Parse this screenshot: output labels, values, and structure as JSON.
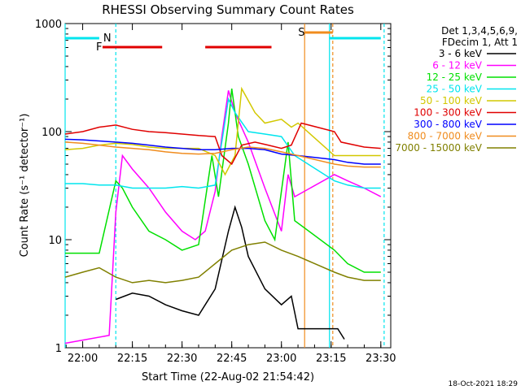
{
  "chart_data": {
    "type": "line",
    "title": "RHESSI Observing Summary Count Rates",
    "xlabel": "Start Time (22-Aug-02 21:54:42)",
    "ylabel": "Count Rate (s⁻¹ detector⁻¹)",
    "yscale": "log",
    "ylim": [
      1,
      1000
    ],
    "xlim": [
      "21:54:42",
      "23:33:00"
    ],
    "x_ticks": [
      "22:00",
      "22:15",
      "22:30",
      "22:45",
      "23:00",
      "23:15",
      "23:30"
    ],
    "y_ticks": [
      "1",
      "10",
      "100",
      "1000"
    ],
    "legend_header": [
      "Det 1,3,4,5,6,9,",
      "FDecim 1, Att 1"
    ],
    "legend_position": "right",
    "timestamp": "18-Oct-2021 18:29",
    "flags": {
      "N": [
        [
          "21:54:42",
          "22:05:00"
        ],
        [
          "23:14:30",
          "23:30:00"
        ]
      ],
      "F": [
        [
          "22:06:00",
          "22:24:00"
        ],
        [
          "22:37:00",
          "22:57:00"
        ]
      ],
      "S": [
        [
          "23:07:00",
          "23:15:30"
        ]
      ]
    },
    "flag_labels": {
      "N": "N",
      "F": "F",
      "S": "S"
    },
    "flag_colors": {
      "N": "#00e5ee",
      "F": "#e00000",
      "S": "#f08c1e"
    },
    "vertical_markers": [
      {
        "time": "21:54:42",
        "color": "#00e5ee",
        "style": "solid"
      },
      {
        "time": "22:10:00",
        "color": "#00e5ee",
        "style": "dashed"
      },
      {
        "time": "23:07:00",
        "color": "#f08c1e",
        "style": "solid"
      },
      {
        "time": "23:14:30",
        "color": "#00e5ee",
        "style": "solid"
      },
      {
        "time": "23:15:30",
        "color": "#f08c1e",
        "style": "dashed"
      },
      {
        "time": "23:31:00",
        "color": "#00e5ee",
        "style": "dashed"
      }
    ],
    "series": [
      {
        "name": "3 - 6 keV",
        "color": "#000000",
        "points": [
          [
            "22:10:00",
            2.8
          ],
          [
            "22:15:00",
            3.2
          ],
          [
            "22:20:00",
            3.0
          ],
          [
            "22:25:00",
            2.5
          ],
          [
            "22:30:00",
            2.2
          ],
          [
            "22:35:00",
            2.0
          ],
          [
            "22:40:00",
            3.5
          ],
          [
            "22:44:00",
            12
          ],
          [
            "22:46:00",
            20
          ],
          [
            "22:48:00",
            13
          ],
          [
            "22:50:00",
            7
          ],
          [
            "22:55:00",
            3.5
          ],
          [
            "23:00:00",
            2.5
          ],
          [
            "23:03:00",
            3
          ],
          [
            "23:05:00",
            1.5
          ],
          [
            "23:17:00",
            1.5
          ],
          [
            "23:19:00",
            1.2
          ]
        ]
      },
      {
        "name": "6 - 12 keV",
        "color": "#ff00ff",
        "points": [
          [
            "21:54:42",
            1.1
          ],
          [
            "22:08:00",
            1.3
          ],
          [
            "22:10:00",
            18
          ],
          [
            "22:12:00",
            60
          ],
          [
            "22:15:00",
            45
          ],
          [
            "22:20:00",
            30
          ],
          [
            "22:25:00",
            18
          ],
          [
            "22:30:00",
            12
          ],
          [
            "22:34:00",
            10
          ],
          [
            "22:37:00",
            12
          ],
          [
            "22:40:00",
            28
          ],
          [
            "22:42:00",
            90
          ],
          [
            "22:44:00",
            240
          ],
          [
            "22:46:00",
            150
          ],
          [
            "22:50:00",
            80
          ],
          [
            "22:55:00",
            30
          ],
          [
            "23:00:00",
            12
          ],
          [
            "23:02:00",
            40
          ],
          [
            "23:04:00",
            25
          ],
          [
            "23:16:00",
            40
          ],
          [
            "23:20:00",
            35
          ],
          [
            "23:25:00",
            30
          ],
          [
            "23:30:00",
            25
          ]
        ]
      },
      {
        "name": "12 - 25 keV",
        "color": "#00e000",
        "points": [
          [
            "21:54:42",
            7.5
          ],
          [
            "22:05:00",
            7.5
          ],
          [
            "22:10:00",
            35
          ],
          [
            "22:12:00",
            30
          ],
          [
            "22:15:00",
            20
          ],
          [
            "22:20:00",
            12
          ],
          [
            "22:25:00",
            10
          ],
          [
            "22:30:00",
            8
          ],
          [
            "22:35:00",
            9
          ],
          [
            "22:39:00",
            60
          ],
          [
            "22:41:00",
            25
          ],
          [
            "22:44:00",
            120
          ],
          [
            "22:45:00",
            250
          ],
          [
            "22:47:00",
            90
          ],
          [
            "22:50:00",
            50
          ],
          [
            "22:55:00",
            15
          ],
          [
            "22:58:00",
            10
          ],
          [
            "23:02:00",
            80
          ],
          [
            "23:04:00",
            15
          ],
          [
            "23:16:00",
            8
          ],
          [
            "23:20:00",
            6
          ],
          [
            "23:25:00",
            5
          ],
          [
            "23:30:00",
            5
          ]
        ]
      },
      {
        "name": "25 - 50 keV",
        "color": "#00e5ee",
        "points": [
          [
            "21:54:42",
            33
          ],
          [
            "22:00:00",
            33
          ],
          [
            "22:05:00",
            32
          ],
          [
            "22:10:00",
            32
          ],
          [
            "22:15:00",
            30
          ],
          [
            "22:20:00",
            30
          ],
          [
            "22:25:00",
            30
          ],
          [
            "22:30:00",
            31
          ],
          [
            "22:35:00",
            30
          ],
          [
            "22:40:00",
            32
          ],
          [
            "22:44:00",
            200
          ],
          [
            "22:46:00",
            150
          ],
          [
            "22:50:00",
            100
          ],
          [
            "22:55:00",
            95
          ],
          [
            "23:00:00",
            90
          ],
          [
            "23:04:00",
            60
          ],
          [
            "23:16:00",
            35
          ],
          [
            "23:20:00",
            32
          ],
          [
            "23:25:00",
            30
          ],
          [
            "23:30:00",
            30
          ]
        ]
      },
      {
        "name": "50 - 100 keV",
        "color": "#d2c800",
        "points": [
          [
            "21:54:42",
            68
          ],
          [
            "22:00:00",
            70
          ],
          [
            "22:05:00",
            75
          ],
          [
            "22:10:00",
            78
          ],
          [
            "22:15:00",
            76
          ],
          [
            "22:20:00",
            72
          ],
          [
            "22:25:00",
            70
          ],
          [
            "22:30:00",
            70
          ],
          [
            "22:35:00",
            70
          ],
          [
            "22:40:00",
            60
          ],
          [
            "22:43:00",
            40
          ],
          [
            "22:46:00",
            60
          ],
          [
            "22:48:00",
            250
          ],
          [
            "22:52:00",
            150
          ],
          [
            "22:55:00",
            120
          ],
          [
            "23:00:00",
            130
          ],
          [
            "23:03:00",
            110
          ],
          [
            "23:05:00",
            120
          ],
          [
            "23:16:00",
            60
          ],
          [
            "23:20:00",
            60
          ],
          [
            "23:25:00",
            60
          ],
          [
            "23:30:00",
            60
          ]
        ]
      },
      {
        "name": "100 - 300 keV",
        "color": "#e00000",
        "points": [
          [
            "21:54:42",
            95
          ],
          [
            "22:00:00",
            100
          ],
          [
            "22:05:00",
            110
          ],
          [
            "22:10:00",
            115
          ],
          [
            "22:15:00",
            105
          ],
          [
            "22:20:00",
            100
          ],
          [
            "22:25:00",
            98
          ],
          [
            "22:30:00",
            95
          ],
          [
            "22:35:00",
            92
          ],
          [
            "22:40:00",
            90
          ],
          [
            "22:42:00",
            60
          ],
          [
            "22:45:00",
            50
          ],
          [
            "22:48:00",
            75
          ],
          [
            "22:52:00",
            80
          ],
          [
            "22:56:00",
            75
          ],
          [
            "23:00:00",
            70
          ],
          [
            "23:03:00",
            75
          ],
          [
            "23:06:00",
            120
          ],
          [
            "23:16:00",
            100
          ],
          [
            "23:18:00",
            80
          ],
          [
            "23:25:00",
            72
          ],
          [
            "23:30:00",
            70
          ]
        ]
      },
      {
        "name": "300 - 800 keV",
        "color": "#0000ff",
        "points": [
          [
            "21:54:42",
            85
          ],
          [
            "22:00:00",
            84
          ],
          [
            "22:05:00",
            82
          ],
          [
            "22:10:00",
            80
          ],
          [
            "22:15:00",
            78
          ],
          [
            "22:20:00",
            75
          ],
          [
            "22:25:00",
            72
          ],
          [
            "22:30:00",
            70
          ],
          [
            "22:35:00",
            68
          ],
          [
            "22:40:00",
            68
          ],
          [
            "22:45:00",
            70
          ],
          [
            "22:50:00",
            70
          ],
          [
            "22:55:00",
            68
          ],
          [
            "23:00:00",
            62
          ],
          [
            "23:05:00",
            60
          ],
          [
            "23:16:00",
            55
          ],
          [
            "23:20:00",
            52
          ],
          [
            "23:25:00",
            50
          ],
          [
            "23:30:00",
            50
          ]
        ]
      },
      {
        "name": "800 - 7000 keV",
        "color": "#f08c1e",
        "points": [
          [
            "21:54:42",
            80
          ],
          [
            "22:00:00",
            78
          ],
          [
            "22:05:00",
            75
          ],
          [
            "22:10:00",
            72
          ],
          [
            "22:15:00",
            70
          ],
          [
            "22:20:00",
            68
          ],
          [
            "22:25:00",
            65
          ],
          [
            "22:30:00",
            63
          ],
          [
            "22:35:00",
            62
          ],
          [
            "22:40:00",
            63
          ],
          [
            "22:45:00",
            68
          ],
          [
            "22:50:00",
            72
          ],
          [
            "22:55:00",
            70
          ],
          [
            "23:00:00",
            65
          ],
          [
            "23:05:00",
            60
          ],
          [
            "23:16:00",
            50
          ],
          [
            "23:20:00",
            48
          ],
          [
            "23:25:00",
            47
          ],
          [
            "23:30:00",
            47
          ]
        ]
      },
      {
        "name": "7000 - 15000 keV",
        "color": "#808000",
        "points": [
          [
            "21:54:42",
            4.5
          ],
          [
            "22:00:00",
            5
          ],
          [
            "22:05:00",
            5.5
          ],
          [
            "22:10:00",
            4.5
          ],
          [
            "22:15:00",
            4
          ],
          [
            "22:20:00",
            4.2
          ],
          [
            "22:25:00",
            4
          ],
          [
            "22:30:00",
            4.2
          ],
          [
            "22:35:00",
            4.5
          ],
          [
            "22:40:00",
            6
          ],
          [
            "22:45:00",
            8
          ],
          [
            "22:50:00",
            9
          ],
          [
            "22:55:00",
            9.5
          ],
          [
            "23:00:00",
            8
          ],
          [
            "23:05:00",
            7
          ],
          [
            "23:16:00",
            5
          ],
          [
            "23:20:00",
            4.5
          ],
          [
            "23:25:00",
            4.2
          ],
          [
            "23:30:00",
            4.2
          ]
        ]
      }
    ]
  }
}
